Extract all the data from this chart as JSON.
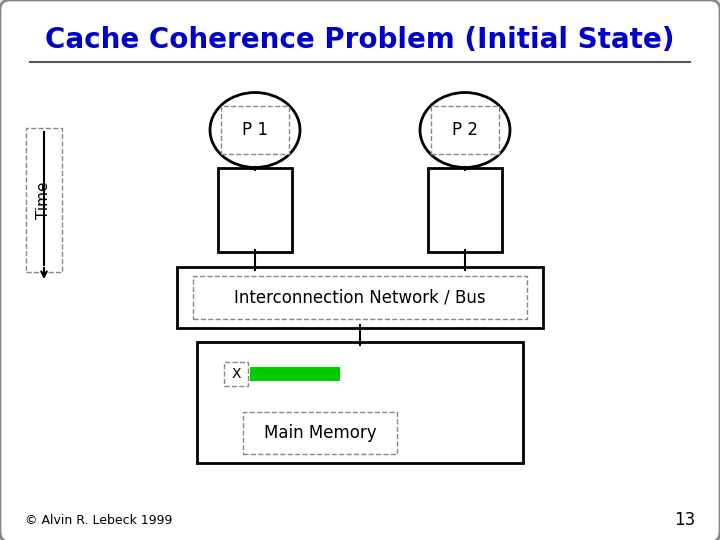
{
  "title": "Cache Coherence Problem (Initial State)",
  "title_color": "#0000CC",
  "title_fontsize": 20,
  "bg_color": "#E8E8E8",
  "slide_bg": "#FFFFFF",
  "border_color": "#888888",
  "p1_label": "P 1",
  "p2_label": "P 2",
  "bus_label": "Interconnection Network / Bus",
  "memory_label": "Main Memory",
  "x_label": "X",
  "time_label": "Time",
  "copyright": "© Alvin R. Lebeck 1999",
  "page_num": "13",
  "green_bar_color": "#00CC00",
  "box_edge_color": "#000000",
  "line_color": "#000000",
  "dashed_edge_color": "#888888"
}
